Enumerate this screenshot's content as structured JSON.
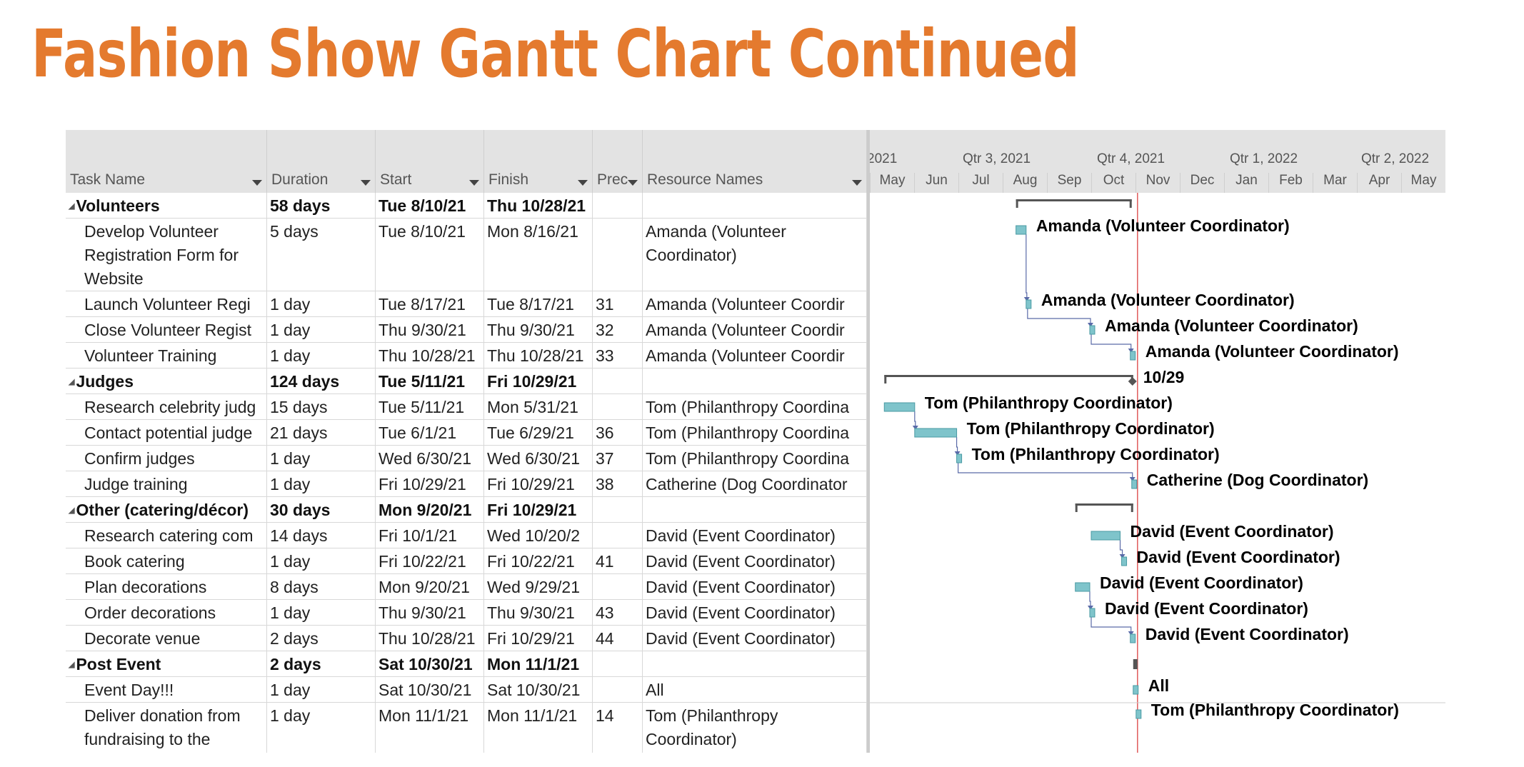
{
  "slide": {
    "title": "Fashion Show Gantt Chart Continued"
  },
  "columns": [
    {
      "key": "name",
      "label": "Task Name",
      "dropdown": true
    },
    {
      "key": "duration",
      "label": "Duration",
      "dropdown": true
    },
    {
      "key": "start",
      "label": "Start",
      "dropdown": true
    },
    {
      "key": "finish",
      "label": "Finish",
      "dropdown": true
    },
    {
      "key": "pred",
      "label": "Prec",
      "dropdown": true
    },
    {
      "key": "resources",
      "label": "Resource Names",
      "dropdown": true
    }
  ],
  "tasks": [
    {
      "name": "Volunteers",
      "summary": true,
      "duration": "58 days",
      "start": "Tue 8/10/21",
      "finish": "Thu 10/28/21",
      "pred": "",
      "resources": "",
      "label": ""
    },
    {
      "name": "Develop Volunteer Registration Form for Website",
      "summary": false,
      "duration": "5 days",
      "start": "Tue 8/10/21",
      "finish": "Mon 8/16/21",
      "pred": "",
      "resources": "Amanda (Volunteer Coordinator)",
      "label": "Amanda (Volunteer Coordinator)"
    },
    {
      "name": "Launch Volunteer Regi",
      "summary": false,
      "duration": "1 day",
      "start": "Tue 8/17/21",
      "finish": "Tue 8/17/21",
      "pred": "31",
      "resources": "Amanda (Volunteer Coordir",
      "label": "Amanda (Volunteer Coordinator)"
    },
    {
      "name": "Close Volunteer Regist",
      "summary": false,
      "duration": "1 day",
      "start": "Thu 9/30/21",
      "finish": "Thu 9/30/21",
      "pred": "32",
      "resources": "Amanda (Volunteer Coordir",
      "label": "Amanda (Volunteer Coordinator)"
    },
    {
      "name": "Volunteer Training",
      "summary": false,
      "duration": "1 day",
      "start": "Thu 10/28/21",
      "finish": "Thu 10/28/21",
      "pred": "33",
      "resources": "Amanda (Volunteer Coordir",
      "label": "Amanda (Volunteer Coordinator)"
    },
    {
      "name": "Judges",
      "summary": true,
      "duration": "124 days",
      "start": "Tue 5/11/21",
      "finish": "Fri 10/29/21",
      "pred": "",
      "resources": "",
      "label": "10/29"
    },
    {
      "name": "Research celebrity judg",
      "summary": false,
      "duration": "15 days",
      "start": "Tue 5/11/21",
      "finish": "Mon 5/31/21",
      "pred": "",
      "resources": "Tom (Philanthropy Coordina",
      "label": "Tom (Philanthropy Coordinator)"
    },
    {
      "name": "Contact potential judge",
      "summary": false,
      "duration": "21 days",
      "start": "Tue 6/1/21",
      "finish": "Tue 6/29/21",
      "pred": "36",
      "resources": "Tom (Philanthropy Coordina",
      "label": "Tom (Philanthropy Coordinator)"
    },
    {
      "name": "Confirm judges",
      "summary": false,
      "duration": "1 day",
      "start": "Wed 6/30/21",
      "finish": "Wed 6/30/21",
      "pred": "37",
      "resources": "Tom (Philanthropy Coordina",
      "label": "Tom (Philanthropy Coordinator)"
    },
    {
      "name": "Judge training",
      "summary": false,
      "duration": "1 day",
      "start": "Fri 10/29/21",
      "finish": "Fri 10/29/21",
      "pred": "38",
      "resources": "Catherine (Dog Coordinator",
      "label": "Catherine (Dog Coordinator)"
    },
    {
      "name": "Other (catering/décor)",
      "summary": true,
      "duration": "30 days",
      "start": "Mon 9/20/21",
      "finish": "Fri 10/29/21",
      "pred": "",
      "resources": "",
      "label": ""
    },
    {
      "name": "Research catering com",
      "summary": false,
      "duration": "14 days",
      "start": "Fri 10/1/21",
      "finish": "Wed 10/20/2",
      "pred": "",
      "resources": "David (Event Coordinator)",
      "label": "David (Event Coordinator)"
    },
    {
      "name": "Book catering",
      "summary": false,
      "duration": "1 day",
      "start": "Fri 10/22/21",
      "finish": "Fri 10/22/21",
      "pred": "41",
      "resources": "David (Event Coordinator)",
      "label": "David (Event Coordinator)"
    },
    {
      "name": "Plan decorations",
      "summary": false,
      "duration": "8 days",
      "start": "Mon 9/20/21",
      "finish": "Wed 9/29/21",
      "pred": "",
      "resources": "David (Event Coordinator)",
      "label": "David (Event Coordinator)"
    },
    {
      "name": "Order decorations",
      "summary": false,
      "duration": "1 day",
      "start": "Thu 9/30/21",
      "finish": "Thu 9/30/21",
      "pred": "43",
      "resources": "David (Event Coordinator)",
      "label": "David (Event Coordinator)"
    },
    {
      "name": "Decorate venue",
      "summary": false,
      "duration": "2 days",
      "start": "Thu 10/28/21",
      "finish": "Fri 10/29/21",
      "pred": "44",
      "resources": "David (Event Coordinator)",
      "label": "David (Event Coordinator)"
    },
    {
      "name": "Post Event",
      "summary": true,
      "duration": "2 days",
      "start": "Sat 10/30/21",
      "finish": "Mon 11/1/21",
      "pred": "",
      "resources": "",
      "label": ""
    },
    {
      "name": "Event Day!!!",
      "summary": false,
      "duration": "1 day",
      "start": "Sat 10/30/21",
      "finish": "Sat 10/30/21",
      "pred": "",
      "resources": "All",
      "label": "All"
    },
    {
      "name": "Deliver donation from fundraising to the",
      "summary": false,
      "duration": "1 day",
      "start": "Mon 11/1/21",
      "finish": "Mon 11/1/21",
      "pred": "14",
      "resources": "Tom (Philanthropy Coordinator)",
      "label": "Tom (Philanthropy Coordinator)"
    }
  ],
  "timescale": {
    "top_tiers": [
      "2021",
      "Qtr 3, 2021",
      "Qtr 4, 2021",
      "Qtr 1, 2022",
      "Qtr 2, 2022"
    ],
    "months": [
      "May",
      "Jun",
      "Jul",
      "Aug",
      "Sep",
      "Oct",
      "Nov",
      "Dec",
      "Jan",
      "Feb",
      "Mar",
      "Apr",
      "May"
    ]
  },
  "chart_data": {
    "type": "gantt",
    "timeline_start": "2021-05-01",
    "current_date_line": "2021-11-01",
    "tasks": [
      {
        "row": 0,
        "kind": "summary",
        "start": "2021-08-10",
        "end": "2021-10-28"
      },
      {
        "row": 1,
        "kind": "task",
        "start": "2021-08-10",
        "end": "2021-08-16",
        "predecessor": null
      },
      {
        "row": 2,
        "kind": "task",
        "start": "2021-08-17",
        "end": "2021-08-17",
        "predecessor": 1
      },
      {
        "row": 3,
        "kind": "task",
        "start": "2021-09-30",
        "end": "2021-09-30",
        "predecessor": 2
      },
      {
        "row": 4,
        "kind": "task",
        "start": "2021-10-28",
        "end": "2021-10-28",
        "predecessor": 3
      },
      {
        "row": 5,
        "kind": "summary",
        "start": "2021-05-11",
        "end": "2021-10-29"
      },
      {
        "row": 6,
        "kind": "task",
        "start": "2021-05-11",
        "end": "2021-05-31",
        "predecessor": null
      },
      {
        "row": 7,
        "kind": "task",
        "start": "2021-06-01",
        "end": "2021-06-29",
        "predecessor": 6
      },
      {
        "row": 8,
        "kind": "task",
        "start": "2021-06-30",
        "end": "2021-06-30",
        "predecessor": 7
      },
      {
        "row": 9,
        "kind": "task",
        "start": "2021-10-29",
        "end": "2021-10-29",
        "predecessor": 8
      },
      {
        "row": 10,
        "kind": "summary",
        "start": "2021-09-20",
        "end": "2021-10-29"
      },
      {
        "row": 11,
        "kind": "task",
        "start": "2021-10-01",
        "end": "2021-10-20",
        "predecessor": null
      },
      {
        "row": 12,
        "kind": "task",
        "start": "2021-10-22",
        "end": "2021-10-22",
        "predecessor": 11
      },
      {
        "row": 13,
        "kind": "task",
        "start": "2021-09-20",
        "end": "2021-09-29",
        "predecessor": null
      },
      {
        "row": 14,
        "kind": "task",
        "start": "2021-09-30",
        "end": "2021-09-30",
        "predecessor": 13
      },
      {
        "row": 15,
        "kind": "task",
        "start": "2021-10-28",
        "end": "2021-10-29",
        "predecessor": 14
      },
      {
        "row": 16,
        "kind": "summary",
        "start": "2021-10-30",
        "end": "2021-11-01"
      },
      {
        "row": 17,
        "kind": "task",
        "start": "2021-10-30",
        "end": "2021-10-30",
        "predecessor": null
      },
      {
        "row": 18,
        "kind": "task",
        "start": "2021-11-01",
        "end": "2021-11-01",
        "predecessor": null
      }
    ]
  },
  "colors": {
    "title": "#e47a2e",
    "task_bar": "#7fc4cb",
    "task_bar_edge": "#4a9aa3",
    "summary_bar": "#555555",
    "link_line": "#5a6aa8",
    "current_date_line": "#e05a5a"
  }
}
